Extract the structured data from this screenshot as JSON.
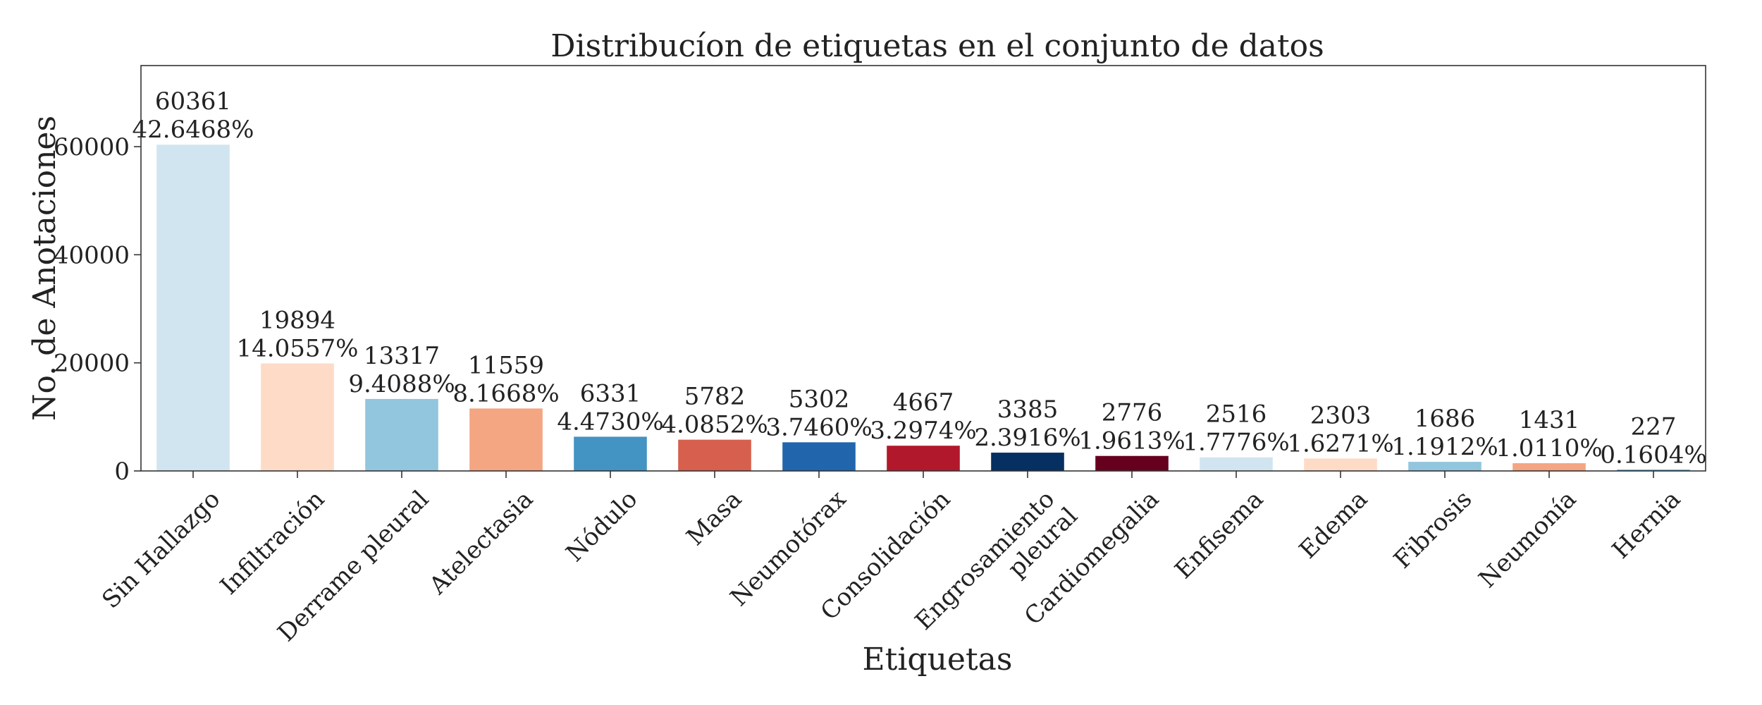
{
  "chart_data": {
    "type": "bar",
    "title": "Distribucíon de etiquetas en el conjunto de datos",
    "xlabel": "Etiquetas",
    "ylabel": "No. de Anotaciones",
    "ylim": [
      0,
      75000
    ],
    "yticks": [
      "0",
      "20000",
      "40000",
      "60000"
    ],
    "grid": false,
    "categories": [
      "Sin Hallazgo",
      "Infiltración",
      "Derrame pleural",
      "Atelectasia",
      "Nódulo",
      "Masa",
      "Neumotórax",
      "Consolidación",
      "Engrosamiento\npleural",
      "Cardiomegalia",
      "Enfisema",
      "Edema",
      "Fibrosis",
      "Neumonía",
      "Hernia"
    ],
    "values": [
      60361,
      19894,
      13317,
      11559,
      6331,
      5782,
      5302,
      4667,
      3385,
      2776,
      2516,
      2303,
      1686,
      1431,
      227
    ],
    "percentages": [
      "42.6468%",
      "14.0557%",
      "9.4088%",
      "8.1668%",
      "4.4730%",
      "4.0852%",
      "3.7460%",
      "3.2974%",
      "2.3916%",
      "1.9613%",
      "1.7776%",
      "1.6271%",
      "1.1912%",
      "1.0110%",
      "0.1604%"
    ],
    "colors": [
      "#d1e5f0",
      "#fddbc7",
      "#92c5de",
      "#f4a582",
      "#4393c3",
      "#d6604d",
      "#2166ac",
      "#b2182b",
      "#053061",
      "#67001f",
      "#d1e5f0",
      "#fddbc7",
      "#92c5de",
      "#f4a582",
      "#4393c3"
    ]
  }
}
